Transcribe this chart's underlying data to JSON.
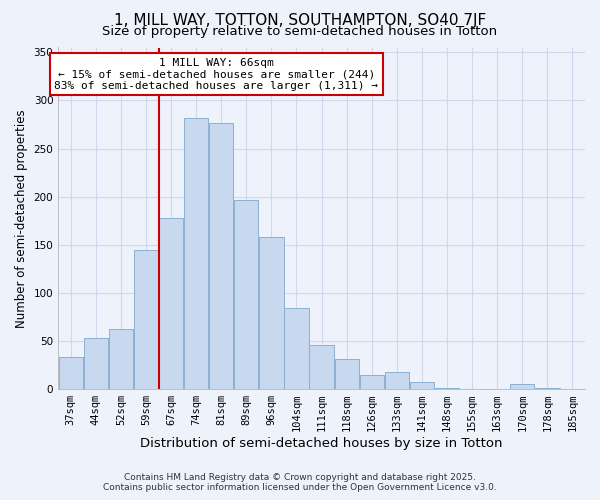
{
  "title": "1, MILL WAY, TOTTON, SOUTHAMPTON, SO40 7JF",
  "subtitle": "Size of property relative to semi-detached houses in Totton",
  "xlabel": "Distribution of semi-detached houses by size in Totton",
  "ylabel": "Number of semi-detached properties",
  "categories": [
    "37sqm",
    "44sqm",
    "52sqm",
    "59sqm",
    "67sqm",
    "74sqm",
    "81sqm",
    "89sqm",
    "96sqm",
    "104sqm",
    "111sqm",
    "118sqm",
    "126sqm",
    "133sqm",
    "141sqm",
    "148sqm",
    "155sqm",
    "163sqm",
    "170sqm",
    "178sqm",
    "185sqm"
  ],
  "values": [
    33,
    53,
    62,
    145,
    178,
    282,
    277,
    197,
    158,
    84,
    46,
    31,
    15,
    18,
    7,
    1,
    0,
    0,
    5,
    1,
    0
  ],
  "bar_color": "#c8d8ee",
  "bar_edge_color": "#8ab0d0",
  "vline_color": "#cc0000",
  "annotation_title": "1 MILL WAY: 66sqm",
  "annotation_line1": "← 15% of semi-detached houses are smaller (244)",
  "annotation_line2": "83% of semi-detached houses are larger (1,311) →",
  "annotation_box_color": "#ffffff",
  "annotation_box_edge": "#cc0000",
  "ylim": [
    0,
    355
  ],
  "yticks": [
    0,
    50,
    100,
    150,
    200,
    250,
    300,
    350
  ],
  "background_color": "#eef2fb",
  "grid_color": "#d0d8ee",
  "footer1": "Contains HM Land Registry data © Crown copyright and database right 2025.",
  "footer2": "Contains public sector information licensed under the Open Government Licence v3.0.",
  "title_fontsize": 11,
  "subtitle_fontsize": 9.5,
  "xlabel_fontsize": 9.5,
  "ylabel_fontsize": 8.5,
  "tick_fontsize": 7.5,
  "footer_fontsize": 6.5,
  "annot_fontsize": 8.0
}
